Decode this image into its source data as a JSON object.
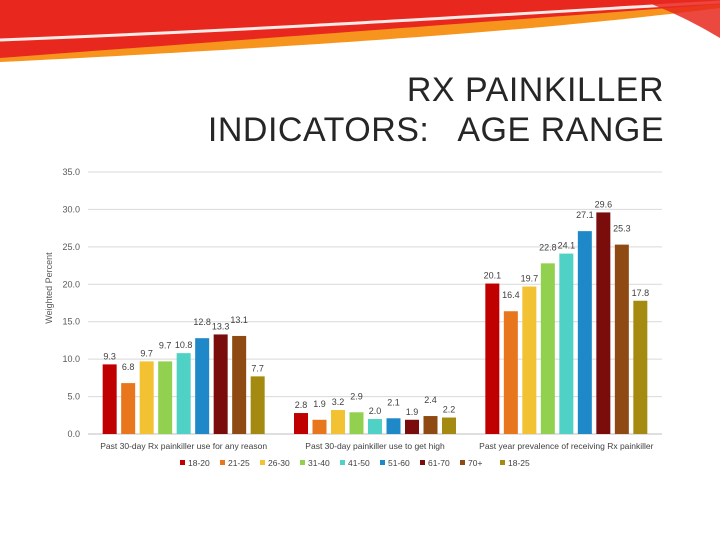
{
  "slide": {
    "title_line1": "RX PAINKILLER",
    "title_line2": "INDICATORS:   AGE RANGE"
  },
  "colors": {
    "title": "#262626",
    "deco_red": "#e8281e",
    "deco_orange": "#f7941d"
  },
  "chart_data": {
    "type": "bar",
    "title": "",
    "ylabel": "Weighted Percent",
    "xlabel": "",
    "ylim": [
      0,
      35
    ],
    "yticks": [
      "0.0",
      "5.0",
      "10.0",
      "15.0",
      "20.0",
      "25.0",
      "30.0",
      "35.0"
    ],
    "grid": true,
    "legend_position": "bottom",
    "categories": [
      "Past 30-day Rx painkiller use for any reason",
      "Past 30-day painkiller use to get high",
      "Past year prevalence of receiving Rx painkiller"
    ],
    "series": [
      {
        "name": "18-20",
        "color": "#c00000",
        "values": [
          9.3,
          2.8,
          20.1
        ]
      },
      {
        "name": "21-25",
        "color": "#e8761c",
        "values": [
          6.8,
          1.9,
          16.4
        ]
      },
      {
        "name": "26-30",
        "color": "#f2c232",
        "values": [
          9.7,
          3.2,
          19.7
        ]
      },
      {
        "name": "31-40",
        "color": "#92d050",
        "values": [
          9.7,
          2.9,
          22.8
        ]
      },
      {
        "name": "41-50",
        "color": "#4fd1c5",
        "values": [
          10.8,
          2.0,
          24.1
        ]
      },
      {
        "name": "51-60",
        "color": "#1f88c8",
        "values": [
          12.8,
          2.1,
          27.1
        ]
      },
      {
        "name": "61-70",
        "color": "#7a0c0c",
        "values": [
          13.3,
          1.9,
          29.6
        ]
      },
      {
        "name": "70+",
        "color": "#8e4a12",
        "values": [
          13.1,
          2.4,
          25.3
        ]
      },
      {
        "name": "18-25",
        "color": "#a58a12",
        "values": [
          7.7,
          2.2,
          17.8
        ]
      }
    ]
  }
}
